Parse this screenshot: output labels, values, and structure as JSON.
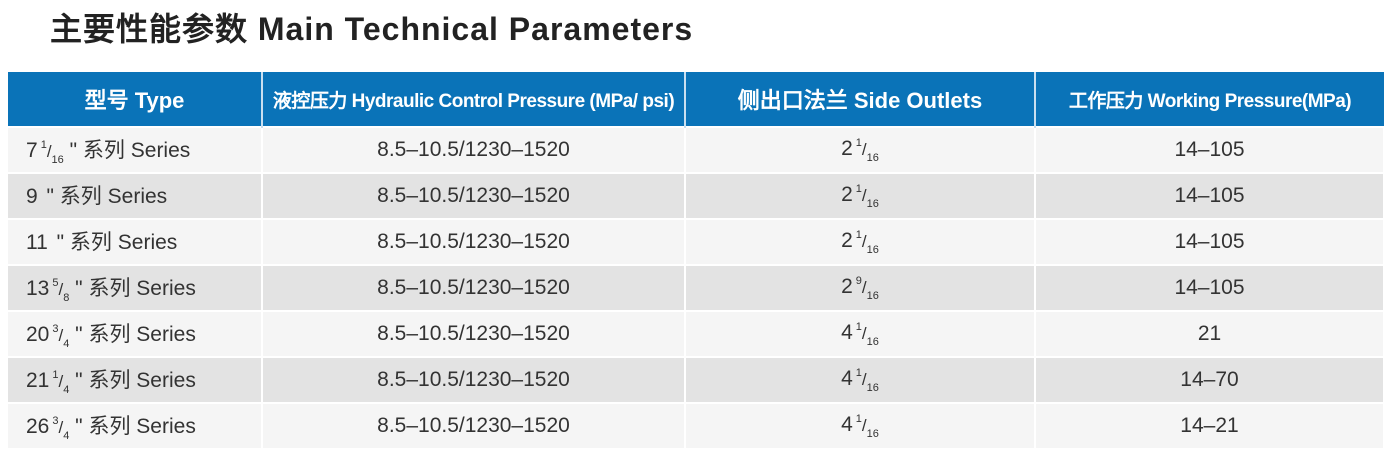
{
  "title": "主要性能参数  Main Technical Parameters",
  "colors": {
    "header_bg": "#0a73b8",
    "row_light": "#f5f5f5",
    "row_dark": "#e3e3e3"
  },
  "headers": [
    "型号  Type",
    "液控压力 Hydraulic Control Pressure (MPa/ psi)",
    "侧出口法兰  Side Outlets",
    "工作压力 Working Pressure(MPa)"
  ],
  "rows": [
    {
      "type": {
        "whole": "7",
        "num": "1",
        "den": "16",
        "suffix": " \" 系列  Series"
      },
      "control": "8.5–10.5/1230–1520",
      "outlet": {
        "whole": "2",
        "num": "1",
        "den": "16"
      },
      "working": "14–105"
    },
    {
      "type": {
        "whole": "9",
        "num": "",
        "den": "",
        "suffix": " \" 系列  Series"
      },
      "control": "8.5–10.5/1230–1520",
      "outlet": {
        "whole": "2",
        "num": "1",
        "den": "16"
      },
      "working": "14–105"
    },
    {
      "type": {
        "whole": "11",
        "num": "",
        "den": "",
        "suffix": " \" 系列  Series"
      },
      "control": "8.5–10.5/1230–1520",
      "outlet": {
        "whole": "2",
        "num": "1",
        "den": "16"
      },
      "working": "14–105"
    },
    {
      "type": {
        "whole": "13",
        "num": "5",
        "den": "8",
        "suffix": " \" 系列  Series"
      },
      "control": "8.5–10.5/1230–1520",
      "outlet": {
        "whole": "2",
        "num": "9",
        "den": "16"
      },
      "working": "14–105"
    },
    {
      "type": {
        "whole": "20",
        "num": "3",
        "den": "4",
        "suffix": " \" 系列  Series"
      },
      "control": "8.5–10.5/1230–1520",
      "outlet": {
        "whole": "4",
        "num": "1",
        "den": "16"
      },
      "working": "21"
    },
    {
      "type": {
        "whole": "21",
        "num": "1",
        "den": "4",
        "suffix": " \" 系列  Series"
      },
      "control": "8.5–10.5/1230–1520",
      "outlet": {
        "whole": "4",
        "num": "1",
        "den": "16"
      },
      "working": "14–70"
    },
    {
      "type": {
        "whole": "26",
        "num": "3",
        "den": "4",
        "suffix": " \" 系列  Series"
      },
      "control": "8.5–10.5/1230–1520",
      "outlet": {
        "whole": "4",
        "num": "1",
        "den": "16"
      },
      "working": "14–21"
    }
  ]
}
